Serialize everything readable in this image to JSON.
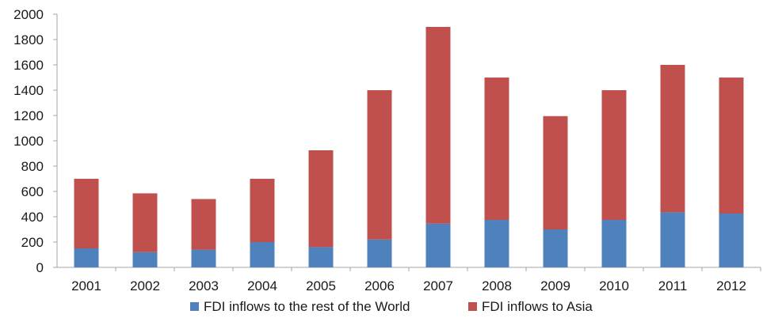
{
  "chart_data": {
    "type": "bar",
    "stacked": true,
    "categories": [
      "2001",
      "2002",
      "2003",
      "2004",
      "2005",
      "2006",
      "2007",
      "2008",
      "2009",
      "2010",
      "2011",
      "2012"
    ],
    "series": [
      {
        "name": "FDI inflows to the rest of the World",
        "color": "#4f81bd",
        "values": [
          150,
          120,
          140,
          200,
          160,
          220,
          345,
          375,
          300,
          375,
          435,
          425
        ]
      },
      {
        "name": "FDI inflows to Asia",
        "color": "#c0504d",
        "values": [
          550,
          465,
          400,
          500,
          765,
          1180,
          1555,
          1125,
          895,
          1025,
          1165,
          1075
        ]
      }
    ],
    "ylim": [
      0,
      2000
    ],
    "yticks": [
      "0",
      "200",
      "400",
      "600",
      "800",
      "1000",
      "1200",
      "1400",
      "1600",
      "1800",
      "2000"
    ],
    "legend_position": "bottom",
    "grid": false,
    "title": "",
    "xlabel": "",
    "ylabel": ""
  }
}
